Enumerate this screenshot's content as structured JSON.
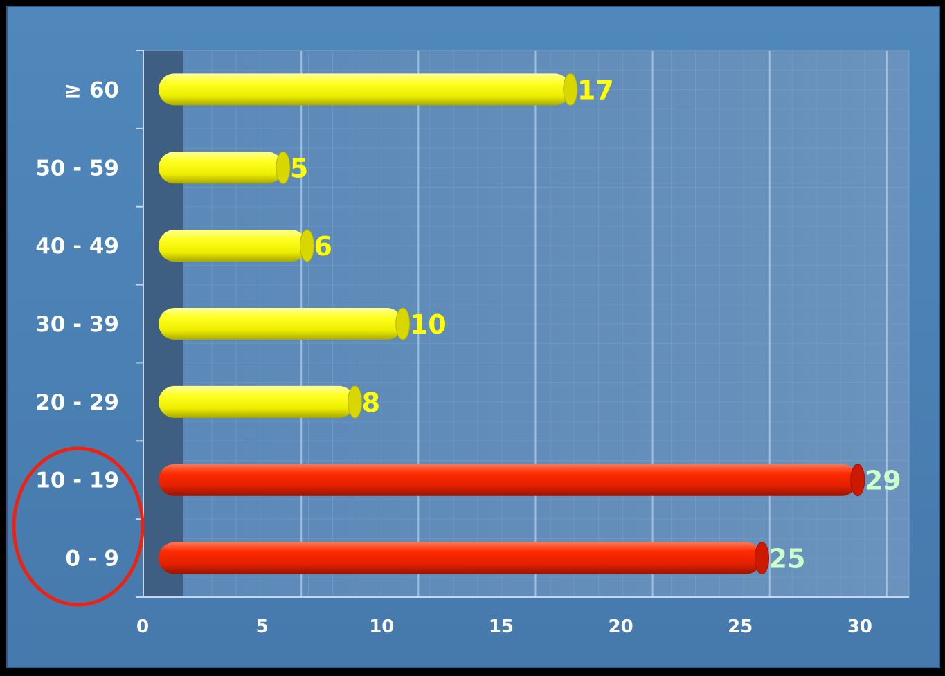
{
  "chart_data": {
    "type": "bar",
    "orientation": "horizontal",
    "categories": [
      "0 - 9",
      "10 - 19",
      "20 - 29",
      "30 - 39",
      "40 - 49",
      "50 - 59",
      "≥ 60"
    ],
    "values": [
      25,
      29,
      8,
      10,
      6,
      5,
      17
    ],
    "bar_colors": [
      "#ee2200",
      "#ee2200",
      "#f0f000",
      "#f0f000",
      "#f0f000",
      "#f0f000",
      "#f0f000"
    ],
    "value_label_colors": [
      "#ccffcc",
      "#ccffcc",
      "#ffff00",
      "#ffff00",
      "#ffff00",
      "#ffff00",
      "#ffff00"
    ],
    "xlim": [
      0,
      30
    ],
    "x_ticks": [
      "0",
      "5",
      "10",
      "15",
      "20",
      "25",
      "30"
    ],
    "grid": true,
    "highlighted_categories": [
      "0 - 9",
      "10 - 19"
    ],
    "highlight_color": "#ee2211",
    "background_color": "#4a80b4"
  }
}
